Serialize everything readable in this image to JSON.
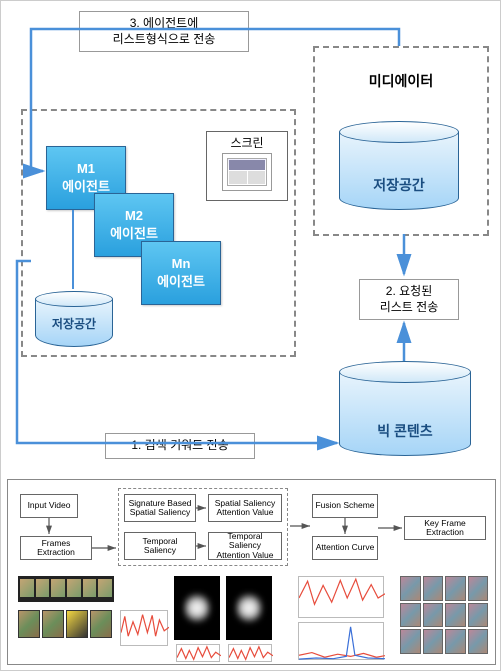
{
  "colors": {
    "agent_fill_top": "#5ec6f2",
    "agent_fill_bot": "#2aa0de",
    "agent_border": "#2a6496",
    "cyl_fill_top": "#ffffff",
    "cyl_fill_bot": "#a6d5f7",
    "cyl_border": "#2a6496",
    "arrow": "#4a90d9",
    "dashed_border": "#888888",
    "box_border": "#666666",
    "background": "#ffffff",
    "text": "#000000",
    "chart_line_red": "#e74c3c",
    "chart_line_blue": "#3a6fd8"
  },
  "fonts": {
    "base_family": "Malgun Gothic",
    "label_size": 12,
    "title_size": 14,
    "mini_size": 8
  },
  "top_diagram": {
    "step1_label": "1. 검색 키워드 전송",
    "step2_label": "2. 요청된\n리스트 전송",
    "step3_label": "3. 에이전트에\n리스트형식으로 전송",
    "mediator_title": "미디에이터",
    "agents": {
      "m1": "M1\n에이전트",
      "m2": "M2\n에이전트",
      "mn": "Mn\n에이전트"
    },
    "screen_label": "스크린",
    "cylinders": {
      "local_storage": "저장공간",
      "mediator_storage": "저장공간",
      "big_contents": "빅 콘텐츠"
    }
  },
  "bottom_diagram": {
    "boxes": {
      "input_video": "Input Video",
      "frames_extraction": "Frames Extraction",
      "sig_spatial": "Signature Based\nSpatial Saliency",
      "temporal_saliency": "Temporal\nSaliency",
      "spatial_attn": "Spatial Saliency\nAttention Value",
      "temporal_attn": "Temporal Saliency\nAttention Value",
      "fusion": "Fusion Scheme",
      "attention_curve": "Attention Curve",
      "key_frame": "Key Frame Extraction"
    },
    "chart1": {
      "type": "line",
      "xlim": [
        0,
        100
      ],
      "ylim": [
        0,
        1
      ],
      "color": "#e74c3c",
      "points": [
        [
          0,
          0.4
        ],
        [
          8,
          0.85
        ],
        [
          15,
          0.3
        ],
        [
          25,
          0.7
        ],
        [
          35,
          0.35
        ],
        [
          45,
          0.9
        ],
        [
          55,
          0.4
        ],
        [
          65,
          0.88
        ],
        [
          72,
          0.3
        ],
        [
          80,
          0.75
        ],
        [
          90,
          0.45
        ],
        [
          100,
          0.55
        ]
      ]
    },
    "chart2": {
      "type": "line",
      "xlim": [
        0,
        100
      ],
      "ylim": [
        0,
        1
      ],
      "color": "#e74c3c",
      "points": [
        [
          0,
          0.3
        ],
        [
          10,
          0.8
        ],
        [
          20,
          0.25
        ],
        [
          28,
          0.7
        ],
        [
          38,
          0.2
        ],
        [
          48,
          0.85
        ],
        [
          58,
          0.35
        ],
        [
          68,
          0.9
        ],
        [
          78,
          0.3
        ],
        [
          88,
          0.6
        ],
        [
          100,
          0.4
        ]
      ]
    },
    "chart3": {
      "type": "line",
      "xlim": [
        0,
        100
      ],
      "ylim": [
        0,
        1
      ],
      "color": "#e74c3c",
      "points": [
        [
          0,
          0.5
        ],
        [
          10,
          0.9
        ],
        [
          18,
          0.35
        ],
        [
          28,
          0.8
        ],
        [
          38,
          0.4
        ],
        [
          48,
          0.92
        ],
        [
          56,
          0.5
        ],
        [
          66,
          0.95
        ],
        [
          74,
          0.45
        ],
        [
          84,
          0.82
        ],
        [
          92,
          0.5
        ],
        [
          100,
          0.6
        ]
      ]
    },
    "chart4": {
      "type": "line_multi",
      "xlim": [
        0,
        100
      ],
      "ylim": [
        0,
        1
      ],
      "series": [
        {
          "color": "#e74c3c",
          "points": [
            [
              0,
              0.15
            ],
            [
              15,
              0.22
            ],
            [
              30,
              0.1
            ],
            [
              45,
              0.18
            ],
            [
              60,
              0.12
            ],
            [
              75,
              0.2
            ],
            [
              90,
              0.1
            ],
            [
              100,
              0.14
            ]
          ]
        },
        {
          "color": "#3a6fd8",
          "points": [
            [
              0,
              0.05
            ],
            [
              20,
              0.08
            ],
            [
              40,
              0.06
            ],
            [
              55,
              0.12
            ],
            [
              60,
              0.9
            ],
            [
              65,
              0.15
            ],
            [
              80,
              0.08
            ],
            [
              100,
              0.06
            ]
          ]
        }
      ]
    }
  }
}
